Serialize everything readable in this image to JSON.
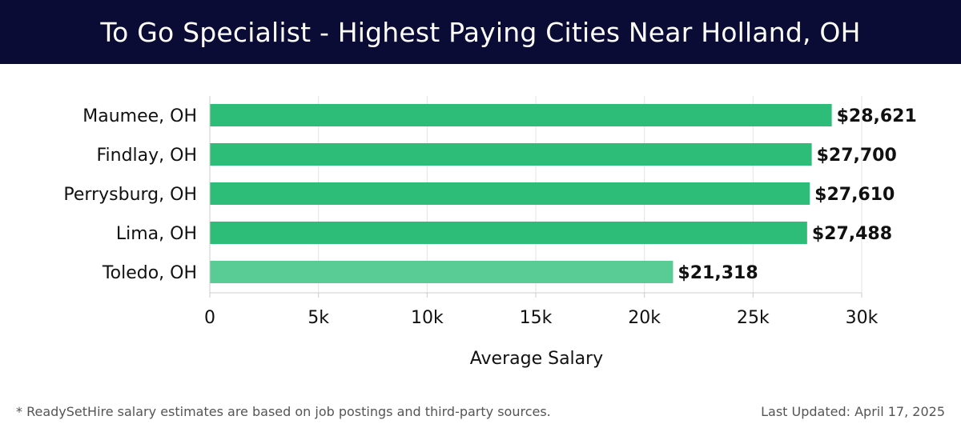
{
  "header": {
    "title": "To Go Specialist - Highest Paying Cities Near Holland, OH"
  },
  "chart_data": {
    "type": "bar",
    "orientation": "horizontal",
    "title": "To Go Specialist - Highest Paying Cities Near Holland, OH",
    "xlabel": "Average Salary",
    "ylabel": "",
    "xlim": [
      0,
      30000
    ],
    "grid": true,
    "categories": [
      "Maumee, OH",
      "Findlay, OH",
      "Perrysburg, OH",
      "Lima, OH",
      "Toledo, OH"
    ],
    "values": [
      28621,
      27700,
      27610,
      27488,
      21318
    ],
    "value_labels": [
      "$28,621",
      "$27,700",
      "$27,610",
      "$27,488",
      "$21,318"
    ],
    "ticks": [
      0,
      5000,
      10000,
      15000,
      20000,
      25000,
      30000
    ],
    "tick_labels": [
      "0",
      "5k",
      "10k",
      "15k",
      "20k",
      "25k",
      "30k"
    ],
    "bar_colors": [
      "#2ebd78",
      "#2ebd78",
      "#2ebd78",
      "#2ebd78",
      "#58cc94"
    ]
  },
  "footer": {
    "note": "* ReadySetHire salary estimates are based on job postings and third-party sources.",
    "updated": "Last Updated: April 17, 2025"
  }
}
